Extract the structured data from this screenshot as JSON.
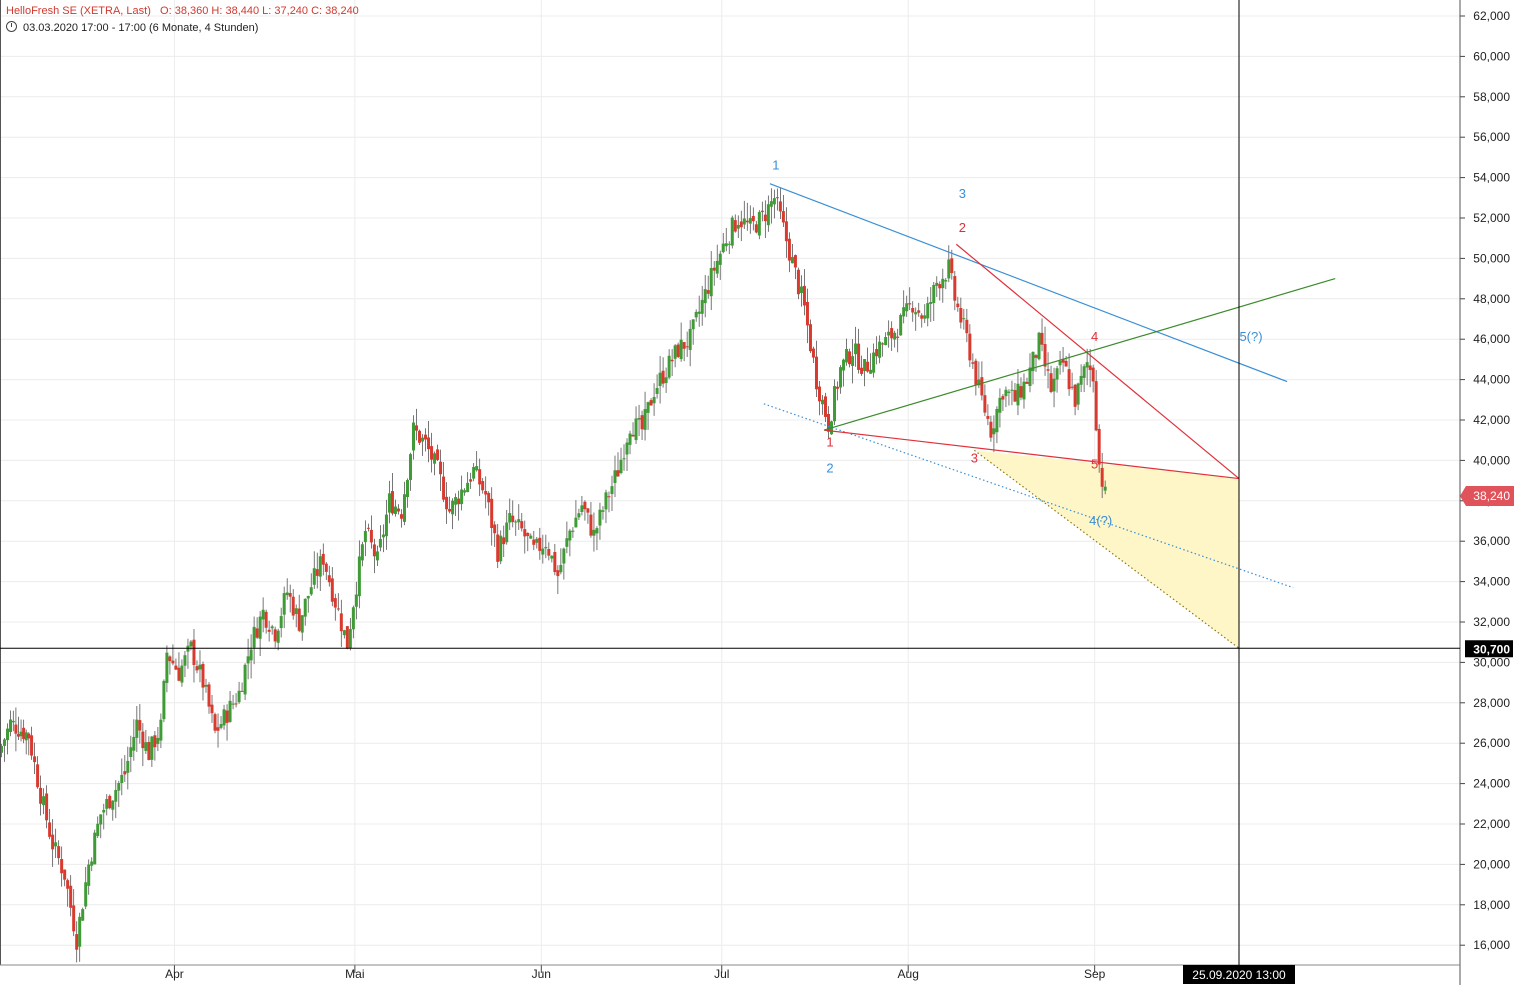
{
  "header": {
    "title": "HelloFresh SE (XETRA, Last)",
    "ohlc": "O: 38,360   H: 38,440   L: 37,240   C: 38,240",
    "subtitle": "03.03.2020 17:00 - 17:00   (6 Monate, 4 Stunden)"
  },
  "colors": {
    "up": "#3f9b35",
    "down": "#d93a2f",
    "blue_line": "#3a8fd6",
    "red_line": "#e0303a",
    "green_line": "#3a8a2a",
    "triangle_fill": "#fff6c8",
    "last_price_badge": "#e0535a"
  },
  "axis": {
    "y_ticks": [
      "62,000",
      "60,000",
      "58,000",
      "56,000",
      "54,000",
      "52,000",
      "50,000",
      "48,000",
      "46,000",
      "44,000",
      "42,000",
      "40,000",
      "38,000",
      "36,000",
      "34,000",
      "32,000",
      "30,000",
      "28,000",
      "26,000",
      "24,000",
      "22,000",
      "20,000",
      "18,000",
      "16,000"
    ],
    "x_ticks": [
      "Apr",
      "Mai",
      "Jun",
      "Jul",
      "Aug",
      "Sep"
    ],
    "last_price_label": "38,240",
    "crosshair_price_label": "30,700",
    "crosshair_date_label": "25.09.2020 13:00"
  },
  "wave_labels": [
    {
      "text": "1",
      "color": "blue",
      "date": "2020-07-10",
      "price": 54.4
    },
    {
      "text": "3",
      "color": "blue",
      "date": "2020-08-10",
      "price": 53.0
    },
    {
      "text": "2",
      "color": "red",
      "date": "2020-08-10",
      "price": 51.3
    },
    {
      "text": "4",
      "color": "red",
      "date": "2020-09-01",
      "price": 45.9
    },
    {
      "text": "5(?)",
      "color": "blue",
      "date": "2020-09-27",
      "price": 45.9
    },
    {
      "text": "1",
      "color": "red",
      "date": "2020-07-19",
      "price": 40.7
    },
    {
      "text": "2",
      "color": "blue",
      "date": "2020-07-19",
      "price": 39.4
    },
    {
      "text": "3",
      "color": "red",
      "date": "2020-08-12",
      "price": 39.9
    },
    {
      "text": "5",
      "color": "red",
      "date": "2020-09-01",
      "price": 39.6
    },
    {
      "text": "4(?)",
      "color": "blue",
      "date": "2020-09-02",
      "price": 36.8
    }
  ],
  "chart_data": {
    "type": "candlestick",
    "title": "HelloFresh SE (XETRA, Last)",
    "interval": "4 Stunden",
    "x_range": [
      "2020-03-03",
      "2020-10-12"
    ],
    "ylim": [
      15,
      63
    ],
    "grid": true,
    "ohlc_last": {
      "open": 38.36,
      "high": 38.44,
      "low": 37.24,
      "close": 38.24
    },
    "price_path": [
      [
        "2020-03-03",
        25.5
      ],
      [
        "2020-03-05",
        27.0
      ],
      [
        "2020-03-08",
        26.4
      ],
      [
        "2020-03-10",
        23.5
      ],
      [
        "2020-03-12",
        21.0
      ],
      [
        "2020-03-14",
        19.5
      ],
      [
        "2020-03-16",
        16.3
      ],
      [
        "2020-03-18",
        20.0
      ],
      [
        "2020-03-20",
        22.5
      ],
      [
        "2020-03-22",
        23.5
      ],
      [
        "2020-03-24",
        24.5
      ],
      [
        "2020-03-26",
        27.0
      ],
      [
        "2020-03-28",
        25.5
      ],
      [
        "2020-03-30",
        26.8
      ],
      [
        "2020-03-31",
        30.5
      ],
      [
        "2020-04-02",
        29.5
      ],
      [
        "2020-04-04",
        30.7
      ],
      [
        "2020-04-06",
        29.0
      ],
      [
        "2020-04-08",
        26.5
      ],
      [
        "2020-04-10",
        27.5
      ],
      [
        "2020-04-12",
        28.5
      ],
      [
        "2020-04-14",
        31.0
      ],
      [
        "2020-04-16",
        32.5
      ],
      [
        "2020-04-18",
        31.5
      ],
      [
        "2020-04-20",
        33.5
      ],
      [
        "2020-04-22",
        32.0
      ],
      [
        "2020-04-24",
        33.8
      ],
      [
        "2020-04-26",
        35.2
      ],
      [
        "2020-04-28",
        33.0
      ],
      [
        "2020-04-30",
        30.9
      ],
      [
        "2020-05-01",
        33.0
      ],
      [
        "2020-05-03",
        36.5
      ],
      [
        "2020-05-05",
        35.0
      ],
      [
        "2020-05-07",
        38.0
      ],
      [
        "2020-05-09",
        37.5
      ],
      [
        "2020-05-11",
        41.5
      ],
      [
        "2020-05-13",
        40.8
      ],
      [
        "2020-05-15",
        39.5
      ],
      [
        "2020-05-17",
        37.5
      ],
      [
        "2020-05-19",
        38.5
      ],
      [
        "2020-05-21",
        39.5
      ],
      [
        "2020-05-23",
        38.3
      ],
      [
        "2020-05-25",
        35.5
      ],
      [
        "2020-05-27",
        37.0
      ],
      [
        "2020-05-29",
        36.5
      ],
      [
        "2020-05-31",
        35.5
      ],
      [
        "2020-06-02",
        36.0
      ],
      [
        "2020-06-04",
        34.3
      ],
      [
        "2020-06-06",
        36.5
      ],
      [
        "2020-06-08",
        37.8
      ],
      [
        "2020-06-10",
        36.3
      ],
      [
        "2020-06-12",
        38.0
      ],
      [
        "2020-06-14",
        39.5
      ],
      [
        "2020-06-16",
        41.8
      ],
      [
        "2020-06-18",
        41.5
      ],
      [
        "2020-06-20",
        43.5
      ],
      [
        "2020-06-22",
        44.5
      ],
      [
        "2020-06-24",
        45.5
      ],
      [
        "2020-06-26",
        46.0
      ],
      [
        "2020-06-28",
        47.8
      ],
      [
        "2020-06-30",
        49.5
      ],
      [
        "2020-07-02",
        51.0
      ],
      [
        "2020-07-04",
        52.0
      ],
      [
        "2020-07-06",
        51.5
      ],
      [
        "2020-07-08",
        52.0
      ],
      [
        "2020-07-10",
        53.0
      ],
      [
        "2020-07-11",
        52.0
      ],
      [
        "2020-07-13",
        49.8
      ],
      [
        "2020-07-15",
        47.5
      ],
      [
        "2020-07-17",
        44.0
      ],
      [
        "2020-07-19",
        41.8
      ],
      [
        "2020-07-21",
        44.5
      ],
      [
        "2020-07-23",
        45.5
      ],
      [
        "2020-07-25",
        44.5
      ],
      [
        "2020-07-27",
        45.5
      ],
      [
        "2020-07-29",
        46.0
      ],
      [
        "2020-07-31",
        46.8
      ],
      [
        "2020-08-02",
        47.8
      ],
      [
        "2020-08-04",
        47.0
      ],
      [
        "2020-08-06",
        48.8
      ],
      [
        "2020-08-08",
        49.5
      ],
      [
        "2020-08-09",
        48.0
      ],
      [
        "2020-08-11",
        46.0
      ],
      [
        "2020-08-13",
        43.5
      ],
      [
        "2020-08-15",
        41.5
      ],
      [
        "2020-08-17",
        43.5
      ],
      [
        "2020-08-19",
        43.0
      ],
      [
        "2020-08-21",
        44.0
      ],
      [
        "2020-08-23",
        45.8
      ],
      [
        "2020-08-25",
        43.5
      ],
      [
        "2020-08-27",
        44.8
      ],
      [
        "2020-08-29",
        43.0
      ],
      [
        "2020-08-31",
        44.8
      ],
      [
        "2020-09-01",
        44.2
      ],
      [
        "2020-09-02",
        39.8
      ],
      [
        "2020-09-03",
        38.24
      ]
    ],
    "trendlines": [
      {
        "name": "blue-upper",
        "color": "blue",
        "style": "solid",
        "from": [
          "2020-07-09",
          53.7
        ],
        "to": [
          "2020-10-03",
          43.9
        ]
      },
      {
        "name": "blue-lower",
        "color": "blue",
        "style": "dotted",
        "from": [
          "2020-07-08",
          42.8
        ],
        "to": [
          "2020-10-04",
          33.7
        ]
      },
      {
        "name": "red-upper",
        "color": "red",
        "style": "solid",
        "from": [
          "2020-08-09",
          50.7
        ],
        "to": [
          "2020-09-25",
          39.1
        ]
      },
      {
        "name": "red-lower",
        "color": "red",
        "style": "solid",
        "from": [
          "2020-07-18",
          41.5
        ],
        "to": [
          "2020-09-25",
          39.1
        ]
      },
      {
        "name": "green",
        "color": "green",
        "style": "solid",
        "from": [
          "2020-07-18",
          41.5
        ],
        "to": [
          "2020-10-11",
          49.0
        ]
      },
      {
        "name": "triangle-edge",
        "color": "olive",
        "style": "dotted",
        "from": [
          "2020-08-12",
          40.5
        ],
        "to": [
          "2020-09-25",
          30.7
        ]
      }
    ],
    "triangle_zone": [
      [
        "2020-08-12",
        40.5
      ],
      [
        "2020-09-25",
        39.1
      ],
      [
        "2020-09-25",
        30.7
      ]
    ],
    "crosshair": {
      "date": "2020-09-25",
      "price": 30.7
    }
  }
}
